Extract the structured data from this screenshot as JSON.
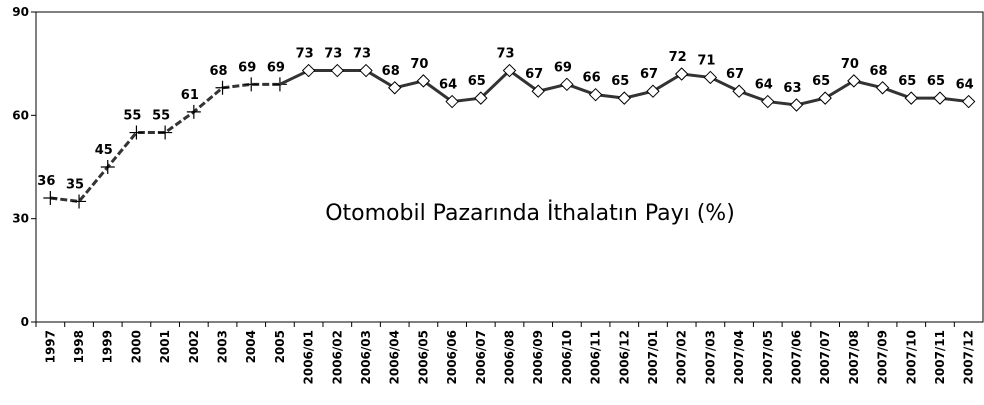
{
  "chart_data": {
    "type": "line",
    "annotation": "Otomobil Pazarında İthalatın Payı (%)",
    "categories": [
      "1997",
      "1998",
      "1999",
      "2000",
      "2001",
      "2002",
      "2003",
      "2004",
      "2005",
      "2006/01",
      "2006/02",
      "2006/03",
      "2006/04",
      "2006/05",
      "2006/06",
      "2006/07",
      "2006/08",
      "2006/09",
      "2006/10",
      "2006/11",
      "2006/12",
      "2007/01",
      "2007/02",
      "2007/03",
      "2007/04",
      "2007/05",
      "2007/06",
      "2007/07",
      "2007/08",
      "2007/09",
      "2007/10",
      "2007/11",
      "2007/12"
    ],
    "series": [
      {
        "color": "#333333",
        "dashed": true,
        "marker": "plus",
        "values": [
          36,
          35,
          45,
          55,
          55,
          61,
          68,
          69,
          69,
          null,
          null,
          null,
          null,
          null,
          null,
          null,
          null,
          null,
          null,
          null,
          null,
          null,
          null,
          null,
          null,
          null,
          null,
          null,
          null,
          null,
          null,
          null,
          null
        ]
      },
      {
        "color": "#333333",
        "dashed": false,
        "marker": "diamond",
        "values": [
          null,
          null,
          null,
          null,
          null,
          null,
          null,
          null,
          null,
          73,
          73,
          73,
          68,
          70,
          64,
          65,
          73,
          67,
          69,
          66,
          65,
          67,
          72,
          71,
          67,
          64,
          63,
          65,
          70,
          68,
          65,
          65,
          64
        ]
      }
    ],
    "ylim": [
      0,
      90
    ],
    "yticks": [
      0,
      30,
      60,
      90
    ],
    "grid": false
  }
}
